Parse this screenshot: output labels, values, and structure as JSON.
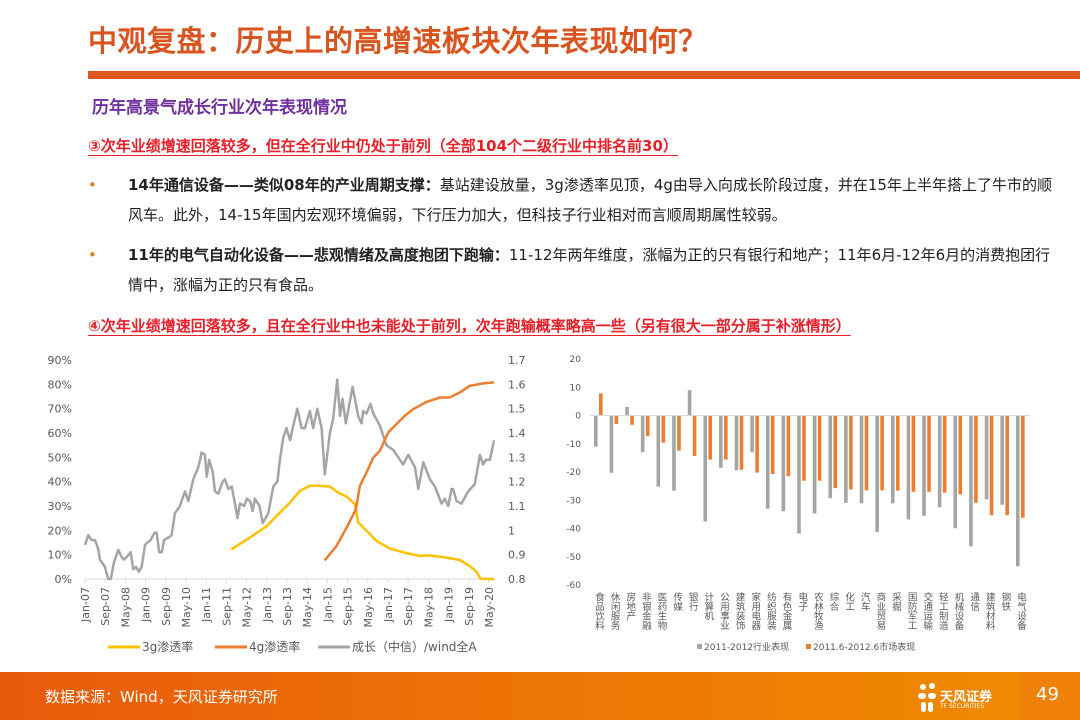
{
  "header": {
    "title": "中观复盘：历史上的高增速板块次年表现如何？",
    "subtitle": "历年高景气成长行业次年表现情况"
  },
  "point3": "③次年业绩增速回落较多，但在全行业中仍处于前列（全部104个二级行业中排名前30）",
  "bullets": [
    {
      "bold": "14年通信设备——类似08年的产业周期支撑：",
      "text": "基站建设放量，3g渗透率见顶，4g由导入向成长阶段过度，并在15年上半年搭上了牛市的顺风车。此外，14-15年国内宏观环境偏弱，下行压力加大，但科技子行业相对而言顺周期属性较弱。"
    },
    {
      "bold": "11年的电气自动化设备——悲观情绪及高度抱团下跑输：",
      "text": "11-12年两年维度，涨幅为正的只有银行和地产；11年6月-12年6月的消费抱团行情中，涨幅为正的只有食品。"
    }
  ],
  "bullet_symbol": "•",
  "point4": "④次年业绩增速回落较多，且在全行业中也未能处于前列，次年跑输概率略高一些（另有很大一部分属于补涨情形）",
  "footer": {
    "source": "数据来源：Wind，天风证券研究所",
    "logo_text": "天风证券",
    "logo_sub": "TF SECURITIES",
    "page_number": "49"
  },
  "colors": {
    "accent": "#DE561D",
    "purple": "#7030A0",
    "red": "#E8202A",
    "gray": "#A5A5A5",
    "orange": "#ED7D31",
    "yellow": "#FFC000"
  },
  "chart_data": [
    {
      "type": "line",
      "x_unit": "months since Jan-07",
      "x_tick_values": [
        0,
        8,
        16,
        24,
        32,
        40,
        48,
        56,
        64,
        72,
        80,
        88,
        96,
        104,
        112,
        120,
        128,
        136,
        144,
        152,
        160
      ],
      "x_tick_labels": [
        "Jan-07",
        "Sep-07",
        "May-08",
        "Jan-09",
        "Sep-09",
        "May-10",
        "Jan-11",
        "Sep-11",
        "May-12",
        "Jan-13",
        "Sep-13",
        "May-14",
        "Jan-15",
        "Sep-15",
        "May-16",
        "Jan-17",
        "Sep-17",
        "May-18",
        "Jan-19",
        "Sep-19",
        "May-20"
      ],
      "xlim": [
        0,
        162
      ],
      "y_left": {
        "ylim": [
          0,
          90
        ],
        "ticks": [
          0,
          10,
          20,
          30,
          40,
          50,
          60,
          70,
          80,
          90
        ],
        "tick_labels": [
          "0%",
          "10%",
          "20%",
          "30%",
          "40%",
          "50%",
          "60%",
          "70%",
          "80%",
          "90%"
        ]
      },
      "y_right": {
        "ylim": [
          0.8,
          1.7
        ],
        "ticks": [
          0.8,
          0.9,
          1,
          1.1,
          1.2,
          1.3,
          1.4,
          1.5,
          1.6,
          1.7
        ],
        "tick_labels": [
          "0.8",
          "0.9",
          "1",
          "1.1",
          "1.2",
          "1.3",
          "1.4",
          "1.5",
          "1.6",
          "1.7"
        ]
      },
      "legend_position": "bottom",
      "series": [
        {
          "name": "3g渗透率",
          "axis": "left",
          "color": "#FFC000",
          "x": [
            58,
            65.3,
            72,
            77.2,
            81.2,
            85.1,
            89.1,
            91.7,
            97,
            100.3,
            103.6,
            106.9,
            108.2,
            111.5,
            115.5,
            120.8,
            127.4,
            132.6,
            136.6,
            143.2,
            148.5,
            152.4,
            155.1,
            156.7,
            162
          ],
          "y": [
            12.2,
            17,
            21.8,
            27.3,
            31.4,
            36.2,
            38.3,
            38.3,
            38,
            35.5,
            33.9,
            30.7,
            23.2,
            19.8,
            15.6,
            12.5,
            10.6,
            9.5,
            9.7,
            8.8,
            7.8,
            5.3,
            2.9,
            0.1,
            0
          ]
        },
        {
          "name": "4g渗透率",
          "axis": "left",
          "color": "#ED7D31",
          "x": [
            95,
            99.6,
            103.6,
            107.3,
            108.9,
            111.5,
            114.2,
            116.8,
            120.1,
            123.4,
            126.7,
            130,
            135.3,
            140.6,
            144.5,
            148.5,
            152.4,
            157.7,
            162
          ],
          "y": [
            7.7,
            13.6,
            21.1,
            28.7,
            38.3,
            43.8,
            49.9,
            52.7,
            60.2,
            63.7,
            67.1,
            69.8,
            72.8,
            74.6,
            74.6,
            76.7,
            79.4,
            80.4,
            80.8
          ]
        },
        {
          "name": "成长（中信）/wind全A",
          "axis": "right",
          "color": "#A5A5A5",
          "x": [
            0,
            1.3,
            2.6,
            4,
            5.3,
            5.9,
            7.9,
            9.2,
            10.2,
            11.5,
            13.2,
            14.5,
            15.4,
            16.5,
            18.1,
            19.1,
            20.2,
            21.3,
            22.4,
            23.8,
            24.7,
            26,
            27.5,
            28.4,
            29.4,
            30.4,
            31.3,
            33,
            34.3,
            35.6,
            37.6,
            39.6,
            40.9,
            42.9,
            44.9,
            46.2,
            47.5,
            48.2,
            49.2,
            50.6,
            51.5,
            52.8,
            54.5,
            55.4,
            56.8,
            58.1,
            59.4,
            60.4,
            61.4,
            63,
            64.1,
            65.4,
            66.4,
            67.3,
            69.1,
            70.4,
            72.6,
            74.6,
            76.2,
            77.2,
            78.5,
            79.8,
            81.2,
            82.5,
            84.1,
            85.8,
            87.1,
            89.1,
            90.4,
            92,
            93.7,
            95,
            97,
            98.3,
            99.9,
            101,
            102,
            103.3,
            106,
            108.2,
            109.5,
            110.2,
            111.5,
            113.1,
            114.2,
            116.8,
            119.4,
            122.1,
            124.1,
            126,
            128,
            130.7,
            132,
            134,
            136.6,
            138.6,
            141.2,
            142.5,
            143.9,
            145.2,
            145.8,
            147.2,
            149.1,
            151.8,
            154.4,
            156.4,
            157.7,
            158.8,
            160.4,
            162
          ],
          "y": [
            0.94,
            0.98,
            0.96,
            0.96,
            0.92,
            0.88,
            0.85,
            0.8,
            0.8,
            0.87,
            0.92,
            0.89,
            0.88,
            0.89,
            0.91,
            0.84,
            0.85,
            0.83,
            0.85,
            0.94,
            0.95,
            0.96,
            0.99,
            0.99,
            0.91,
            0.91,
            0.96,
            0.97,
            0.98,
            1.07,
            1.1,
            1.16,
            1.12,
            1.21,
            1.26,
            1.32,
            1.31,
            1.22,
            1.29,
            1.24,
            1.16,
            1.15,
            1.2,
            1.21,
            1.17,
            1.18,
            1.11,
            1.05,
            1.11,
            1.1,
            1.13,
            1.12,
            1.08,
            1.13,
            1.1,
            1.03,
            1.07,
            1.18,
            1.2,
            1.29,
            1.38,
            1.42,
            1.37,
            1.43,
            1.5,
            1.42,
            1.42,
            1.49,
            1.42,
            1.5,
            1.42,
            1.23,
            1.4,
            1.46,
            1.62,
            1.47,
            1.54,
            1.44,
            1.59,
            1.47,
            1.44,
            1.49,
            1.48,
            1.52,
            1.48,
            1.43,
            1.35,
            1.33,
            1.3,
            1.27,
            1.31,
            1.26,
            1.17,
            1.28,
            1.21,
            1.18,
            1.11,
            1.13,
            1.1,
            1.17,
            1.17,
            1.12,
            1.11,
            1.16,
            1.19,
            1.31,
            1.27,
            1.29,
            1.29,
            1.37
          ]
        }
      ]
    },
    {
      "type": "bar",
      "categories": [
        "食品饮料",
        "休闲服务",
        "房地产",
        "非银金融",
        "医药生物",
        "传媒",
        "银行",
        "计算机",
        "公用事业",
        "建筑装饰",
        "家用电器",
        "纺织服装",
        "有色金属",
        "电子",
        "农林牧渔",
        "综合",
        "化工",
        "汽车",
        "商业贸易",
        "采掘",
        "国防军工",
        "交通运输",
        "轻工制造",
        "机械设备",
        "通信",
        "建筑材料",
        "钢铁",
        "电气设备"
      ],
      "ylim": [
        -60,
        20
      ],
      "y_ticks": [
        20,
        10,
        0,
        -10,
        -20,
        -30,
        -40,
        -50,
        -60
      ],
      "y_tick_labels": [
        "20",
        "10",
        "0",
        "-10",
        "-20",
        "-30",
        "-40",
        "-50",
        "-60"
      ],
      "legend_position": "bottom",
      "series": [
        {
          "name": "2011-2012行业表现",
          "color": "#A5A5A5",
          "values": [
            -11,
            -20.3,
            3,
            -13,
            -25.2,
            -26.6,
            9,
            -37.5,
            -18.5,
            -19.4,
            -13,
            -33,
            -33.9,
            -41.8,
            -34.7,
            -29.3,
            -30.9,
            -31.1,
            -41.3,
            -31.1,
            -36.8,
            -35.5,
            -32.5,
            -39.9,
            -46.3,
            -29.7,
            -31.6,
            -53.4
          ]
        },
        {
          "name": "2011.6-2012.6市场表现",
          "color": "#ED7D31",
          "values": [
            7.8,
            -3,
            -3.3,
            -7.3,
            -9.6,
            -12.4,
            -14.3,
            -15.6,
            -15.6,
            -19.2,
            -20.2,
            -20.7,
            -21.5,
            -23.1,
            -23.1,
            -25.7,
            -26.2,
            -26.5,
            -26.5,
            -26.6,
            -27,
            -27,
            -27.3,
            -27.9,
            -30.9,
            -35.3,
            -35.3,
            -36.2
          ]
        }
      ]
    }
  ]
}
